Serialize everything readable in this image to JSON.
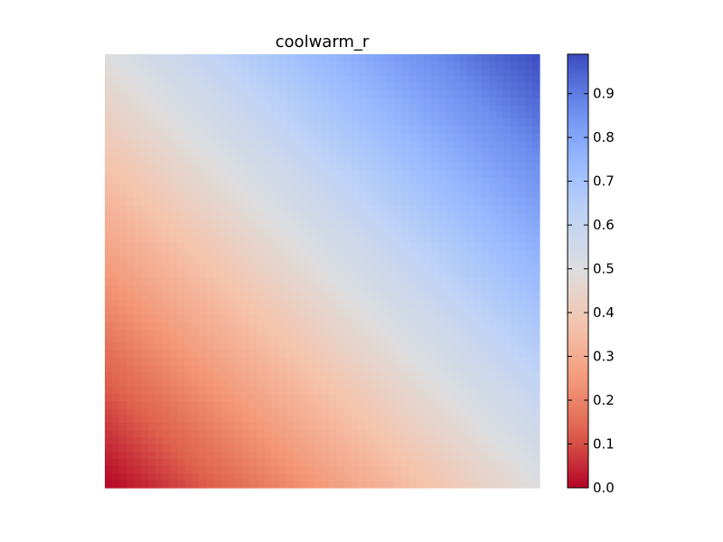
{
  "chart_data": {
    "type": "heatmap",
    "title": "coolwarm_r",
    "colormap": "coolwarm_r",
    "value_model": "normalized diagonal gradient: value = ((1 - row_fraction) + col_fraction) / 2",
    "value_range": [
      0.0,
      0.99
    ],
    "corner_values": {
      "bottom_left": 0.0,
      "top_left": 0.5,
      "bottom_right": 0.5,
      "top_right": 0.99
    },
    "colorbar": {
      "ticks": [
        0.0,
        0.1,
        0.2,
        0.3,
        0.4,
        0.5,
        0.6,
        0.7,
        0.8,
        0.9
      ],
      "tick_labels": [
        "0.0",
        "0.1",
        "0.2",
        "0.3",
        "0.4",
        "0.5",
        "0.6",
        "0.7",
        "0.8",
        "0.9"
      ],
      "vmin": 0.0,
      "vmax": 0.99
    },
    "axes": {
      "x_ticks_visible": false,
      "y_ticks_visible": false,
      "grid": false
    },
    "colors": {
      "low": "#b40426",
      "mid": "#dddddd",
      "high": "#3b4cc0"
    }
  }
}
